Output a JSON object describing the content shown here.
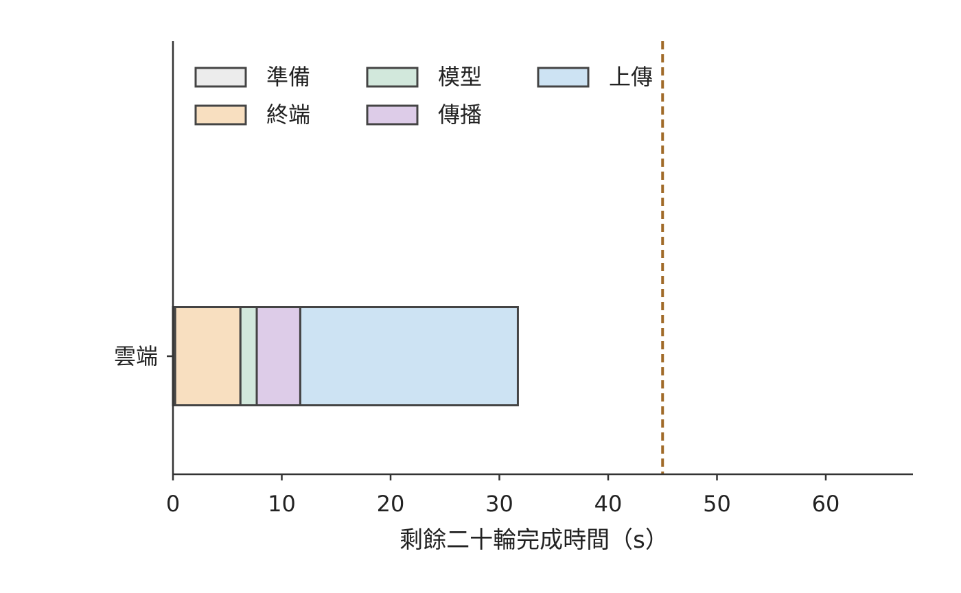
{
  "chart_data": {
    "type": "bar",
    "orientation": "horizontal",
    "stacked": true,
    "categories": [
      "雲端"
    ],
    "series": [
      {
        "name": "準備",
        "values": [
          0.2
        ],
        "color": "#ececec"
      },
      {
        "name": "終端",
        "values": [
          6.0
        ],
        "color": "#f8dfc0"
      },
      {
        "name": "模型",
        "values": [
          1.5
        ],
        "color": "#d2e8dc"
      },
      {
        "name": "傳播",
        "values": [
          4.0
        ],
        "color": "#ddcce8"
      },
      {
        "name": "上傳",
        "values": [
          20.0
        ],
        "color": "#cde3f3"
      }
    ],
    "legend_order": [
      "準備",
      "模型",
      "上傳",
      "終端",
      "傳播"
    ],
    "legend_position": "top-left",
    "reference_line": {
      "x": 45,
      "style": "dashed",
      "color": "#a06a28"
    },
    "xlabel": "剩餘二十輪完成時間（s）",
    "ylabel": "",
    "xlim": [
      0,
      68
    ],
    "xticks": [
      0,
      10,
      20,
      30,
      40,
      50,
      60
    ],
    "grid": false
  }
}
